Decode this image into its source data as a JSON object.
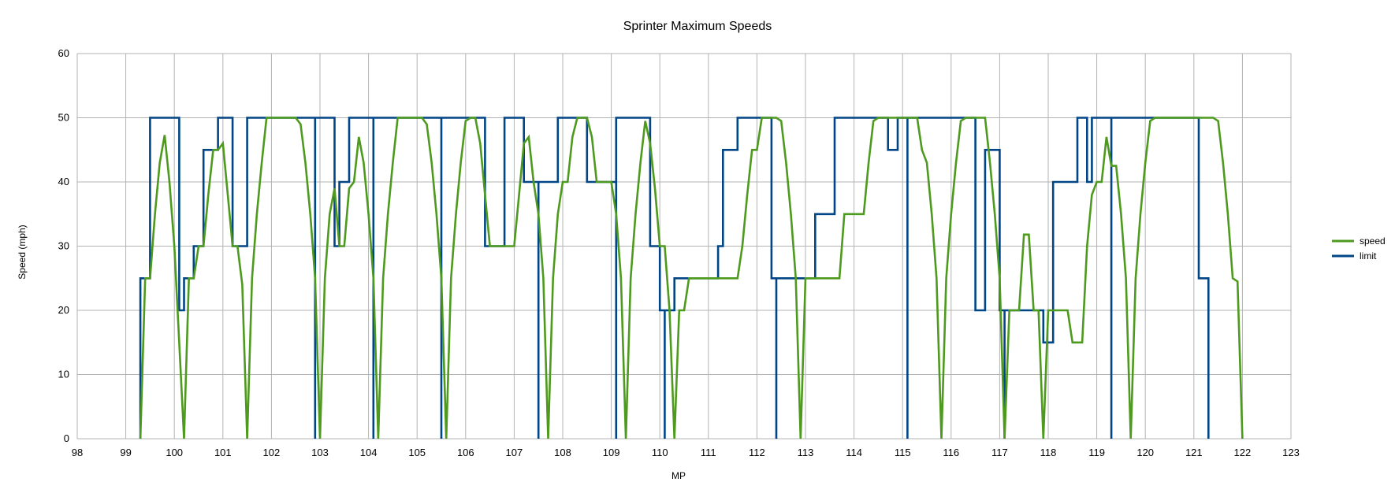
{
  "chart_data": {
    "type": "line",
    "title": "Sprinter Maximum Speeds",
    "xlabel": "MP",
    "ylabel": "Speed (mph)",
    "xlim": [
      98,
      123
    ],
    "ylim": [
      0,
      60
    ],
    "xticks": [
      98,
      99,
      100,
      101,
      102,
      103,
      104,
      105,
      106,
      107,
      108,
      109,
      110,
      111,
      112,
      113,
      114,
      115,
      116,
      117,
      118,
      119,
      120,
      121,
      122,
      123
    ],
    "yticks": [
      0,
      10,
      20,
      30,
      40,
      50,
      60
    ],
    "grid": true,
    "legend_position": "right",
    "series": [
      {
        "name": "speed",
        "color": "#4e9a1f",
        "points": [
          [
            99.3,
            0
          ],
          [
            99.4,
            25
          ],
          [
            99.5,
            25
          ],
          [
            99.6,
            35
          ],
          [
            99.7,
            43
          ],
          [
            99.8,
            47.3
          ],
          [
            99.9,
            40
          ],
          [
            100.0,
            30
          ],
          [
            100.1,
            15
          ],
          [
            100.2,
            0
          ],
          [
            100.3,
            25
          ],
          [
            100.4,
            25
          ],
          [
            100.5,
            30
          ],
          [
            100.6,
            30
          ],
          [
            100.7,
            38
          ],
          [
            100.8,
            45
          ],
          [
            100.9,
            45
          ],
          [
            101.0,
            46
          ],
          [
            101.1,
            38
          ],
          [
            101.2,
            30
          ],
          [
            101.3,
            30
          ],
          [
            101.4,
            24
          ],
          [
            101.5,
            0
          ],
          [
            101.6,
            25
          ],
          [
            101.7,
            35
          ],
          [
            101.8,
            43
          ],
          [
            101.9,
            50
          ],
          [
            102.1,
            50
          ],
          [
            102.5,
            50
          ],
          [
            102.6,
            49
          ],
          [
            102.7,
            43
          ],
          [
            102.8,
            35
          ],
          [
            102.9,
            25
          ],
          [
            103.0,
            0
          ],
          [
            103.1,
            25
          ],
          [
            103.2,
            35
          ],
          [
            103.3,
            39
          ],
          [
            103.4,
            30
          ],
          [
            103.5,
            30
          ],
          [
            103.6,
            39
          ],
          [
            103.7,
            40
          ],
          [
            103.8,
            47
          ],
          [
            103.9,
            43
          ],
          [
            104.0,
            35
          ],
          [
            104.1,
            25
          ],
          [
            104.2,
            0
          ],
          [
            104.3,
            25
          ],
          [
            104.4,
            35
          ],
          [
            104.5,
            43
          ],
          [
            104.6,
            50
          ],
          [
            104.8,
            50
          ],
          [
            105.1,
            50
          ],
          [
            105.2,
            49
          ],
          [
            105.3,
            43
          ],
          [
            105.4,
            35
          ],
          [
            105.5,
            25
          ],
          [
            105.6,
            0
          ],
          [
            105.7,
            25
          ],
          [
            105.8,
            35
          ],
          [
            105.9,
            43
          ],
          [
            106.0,
            49.5
          ],
          [
            106.1,
            50
          ],
          [
            106.2,
            50
          ],
          [
            106.3,
            46
          ],
          [
            106.4,
            38
          ],
          [
            106.5,
            30
          ],
          [
            107.0,
            30
          ],
          [
            107.1,
            38
          ],
          [
            107.2,
            46
          ],
          [
            107.3,
            47
          ],
          [
            107.4,
            40
          ],
          [
            107.5,
            35
          ],
          [
            107.6,
            25
          ],
          [
            107.7,
            0
          ],
          [
            107.8,
            25
          ],
          [
            107.9,
            35
          ],
          [
            108.0,
            40
          ],
          [
            108.1,
            40
          ],
          [
            108.2,
            47
          ],
          [
            108.3,
            50
          ],
          [
            108.5,
            50
          ],
          [
            108.6,
            47
          ],
          [
            108.7,
            40
          ],
          [
            109.0,
            40
          ],
          [
            109.1,
            35
          ],
          [
            109.2,
            25
          ],
          [
            109.3,
            0
          ],
          [
            109.4,
            25
          ],
          [
            109.5,
            35
          ],
          [
            109.6,
            43
          ],
          [
            109.7,
            49.5
          ],
          [
            109.8,
            46
          ],
          [
            109.9,
            39
          ],
          [
            110.0,
            30
          ],
          [
            110.1,
            30
          ],
          [
            110.2,
            20
          ],
          [
            110.3,
            0
          ],
          [
            110.4,
            20
          ],
          [
            110.5,
            20
          ],
          [
            110.6,
            25
          ],
          [
            111.6,
            25
          ],
          [
            111.7,
            30
          ],
          [
            111.8,
            38
          ],
          [
            111.9,
            45
          ],
          [
            112.0,
            45
          ],
          [
            112.1,
            50
          ],
          [
            112.4,
            50
          ],
          [
            112.5,
            49.5
          ],
          [
            112.6,
            43
          ],
          [
            112.7,
            35
          ],
          [
            112.8,
            25
          ],
          [
            112.9,
            0
          ],
          [
            113.0,
            25
          ],
          [
            113.2,
            25
          ],
          [
            113.7,
            25
          ],
          [
            113.8,
            35
          ],
          [
            114.2,
            35
          ],
          [
            114.3,
            43
          ],
          [
            114.4,
            49.5
          ],
          [
            114.5,
            50
          ],
          [
            115.3,
            50
          ],
          [
            115.4,
            45
          ],
          [
            115.5,
            43
          ],
          [
            115.6,
            35
          ],
          [
            115.7,
            25
          ],
          [
            115.8,
            0
          ],
          [
            115.9,
            25
          ],
          [
            116.0,
            35
          ],
          [
            116.1,
            43
          ],
          [
            116.2,
            49.5
          ],
          [
            116.3,
            50
          ],
          [
            116.7,
            50
          ],
          [
            116.8,
            43
          ],
          [
            116.9,
            35
          ],
          [
            117.0,
            25
          ],
          [
            117.1,
            0
          ],
          [
            117.2,
            20
          ],
          [
            117.4,
            20
          ],
          [
            117.5,
            31.8
          ],
          [
            117.6,
            31.8
          ],
          [
            117.7,
            20
          ],
          [
            117.8,
            20
          ],
          [
            117.9,
            0
          ],
          [
            118.0,
            20
          ],
          [
            118.3,
            20
          ],
          [
            118.4,
            20
          ],
          [
            118.5,
            15
          ],
          [
            118.7,
            15
          ],
          [
            118.8,
            30
          ],
          [
            118.9,
            38
          ],
          [
            119.0,
            40
          ],
          [
            119.1,
            40
          ],
          [
            119.2,
            47
          ],
          [
            119.3,
            42.5
          ],
          [
            119.4,
            42.5
          ],
          [
            119.5,
            35
          ],
          [
            119.6,
            25
          ],
          [
            119.7,
            0
          ],
          [
            119.8,
            25
          ],
          [
            119.9,
            35
          ],
          [
            120.0,
            43
          ],
          [
            120.1,
            49.5
          ],
          [
            120.2,
            50
          ],
          [
            121.4,
            50
          ],
          [
            121.5,
            49.5
          ],
          [
            121.6,
            43
          ],
          [
            121.7,
            35
          ],
          [
            121.8,
            25
          ],
          [
            121.9,
            24.5
          ],
          [
            122.0,
            0
          ]
        ]
      },
      {
        "name": "limit",
        "color": "#004586",
        "points": [
          [
            99.3,
            0
          ],
          [
            99.3,
            25
          ],
          [
            99.5,
            25
          ],
          [
            99.5,
            50
          ],
          [
            100.1,
            50
          ],
          [
            100.1,
            20
          ],
          [
            100.2,
            20
          ],
          [
            100.2,
            25
          ],
          [
            100.4,
            25
          ],
          [
            100.4,
            30
          ],
          [
            100.6,
            30
          ],
          [
            100.6,
            45
          ],
          [
            100.9,
            45
          ],
          [
            100.9,
            50
          ],
          [
            101.2,
            50
          ],
          [
            101.2,
            30
          ],
          [
            101.5,
            30
          ],
          [
            101.5,
            50
          ],
          [
            102.9,
            50
          ],
          [
            102.9,
            0
          ],
          [
            102.9,
            50
          ],
          [
            103.3,
            50
          ],
          [
            103.3,
            30
          ],
          [
            103.4,
            30
          ],
          [
            103.4,
            40
          ],
          [
            103.6,
            40
          ],
          [
            103.6,
            50
          ],
          [
            104.1,
            50
          ],
          [
            104.1,
            0
          ],
          [
            104.1,
            50
          ],
          [
            105.5,
            50
          ],
          [
            105.5,
            0
          ],
          [
            105.5,
            50
          ],
          [
            106.4,
            50
          ],
          [
            106.4,
            30
          ],
          [
            106.8,
            30
          ],
          [
            106.8,
            50
          ],
          [
            107.2,
            50
          ],
          [
            107.2,
            40
          ],
          [
            107.5,
            40
          ],
          [
            107.5,
            0
          ],
          [
            107.5,
            40
          ],
          [
            107.9,
            40
          ],
          [
            107.9,
            50
          ],
          [
            108.5,
            50
          ],
          [
            108.5,
            40
          ],
          [
            109.1,
            40
          ],
          [
            109.1,
            0
          ],
          [
            109.1,
            50
          ],
          [
            109.8,
            50
          ],
          [
            109.8,
            30
          ],
          [
            110.0,
            30
          ],
          [
            110.0,
            20
          ],
          [
            110.1,
            20
          ],
          [
            110.1,
            0
          ],
          [
            110.1,
            20
          ],
          [
            110.3,
            20
          ],
          [
            110.3,
            25
          ],
          [
            111.2,
            25
          ],
          [
            111.2,
            30
          ],
          [
            111.3,
            30
          ],
          [
            111.3,
            45
          ],
          [
            111.6,
            45
          ],
          [
            111.6,
            50
          ],
          [
            112.3,
            50
          ],
          [
            112.3,
            25
          ],
          [
            112.4,
            25
          ],
          [
            112.4,
            0
          ],
          [
            112.4,
            25
          ],
          [
            113.2,
            25
          ],
          [
            113.2,
            35
          ],
          [
            113.6,
            35
          ],
          [
            113.6,
            50
          ],
          [
            114.7,
            50
          ],
          [
            114.7,
            45
          ],
          [
            114.9,
            45
          ],
          [
            114.9,
            50
          ],
          [
            115.1,
            50
          ],
          [
            115.1,
            0
          ],
          [
            115.1,
            50
          ],
          [
            116.5,
            50
          ],
          [
            116.5,
            20
          ],
          [
            116.7,
            20
          ],
          [
            116.7,
            45
          ],
          [
            117.0,
            45
          ],
          [
            117.0,
            20
          ],
          [
            117.1,
            20
          ],
          [
            117.1,
            0
          ],
          [
            117.1,
            20
          ],
          [
            117.9,
            20
          ],
          [
            117.9,
            15
          ],
          [
            118.1,
            15
          ],
          [
            118.1,
            40
          ],
          [
            118.6,
            40
          ],
          [
            118.6,
            50
          ],
          [
            118.8,
            50
          ],
          [
            118.8,
            40
          ],
          [
            118.9,
            40
          ],
          [
            118.9,
            50
          ],
          [
            119.3,
            50
          ],
          [
            119.3,
            0
          ],
          [
            119.3,
            50
          ],
          [
            121.1,
            50
          ],
          [
            121.1,
            25
          ],
          [
            121.3,
            25
          ],
          [
            121.3,
            0
          ]
        ]
      }
    ]
  }
}
